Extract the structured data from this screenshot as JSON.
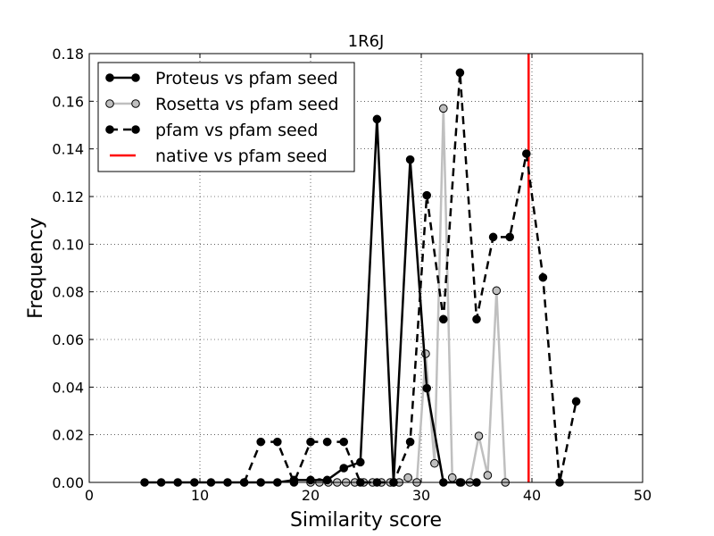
{
  "chart_data": {
    "type": "line",
    "title": "1R6J",
    "xlabel": "Similarity score",
    "ylabel": "Frequency",
    "xlim": [
      0,
      50
    ],
    "ylim": [
      0,
      0.18
    ],
    "xticks": [
      "0",
      "10",
      "20",
      "30",
      "40",
      "50"
    ],
    "yticks": [
      "0.00",
      "0.02",
      "0.04",
      "0.06",
      "0.08",
      "0.10",
      "0.12",
      "0.14",
      "0.16",
      "0.18"
    ],
    "grid": true,
    "legend_position": "top-left",
    "series": [
      {
        "name": "Proteus vs pfam seed",
        "color": "#000000",
        "style": "solid",
        "marker_fill": "#000000",
        "x": [
          5.0,
          6.5,
          8.0,
          9.5,
          11.0,
          12.5,
          14.0,
          15.5,
          17.0,
          18.5,
          20.0,
          21.5,
          23.0,
          24.5,
          26.0,
          27.5,
          29.0,
          30.5,
          32.0,
          33.5,
          35.0
        ],
        "y": [
          0.0,
          0.0,
          0.0,
          0.0,
          0.0,
          0.0,
          0.0,
          0.0,
          0.0,
          0.001,
          0.001,
          0.001,
          0.006,
          0.0085,
          0.1525,
          0.0,
          0.1355,
          0.0395,
          0.0,
          0.0,
          0.0
        ]
      },
      {
        "name": "Rosetta vs pfam seed",
        "color": "#bfbfbf",
        "style": "solid",
        "marker_fill": "#bfbfbf",
        "x": [
          20.0,
          20.8,
          21.6,
          22.4,
          23.2,
          24.0,
          24.8,
          25.6,
          26.4,
          27.2,
          28.0,
          28.8,
          29.6,
          30.4,
          31.2,
          32.0,
          32.8,
          33.6,
          34.4,
          35.2,
          36.0,
          36.8,
          37.6
        ],
        "y": [
          0.0,
          0.0,
          0.0,
          0.0,
          0.0,
          0.0,
          0.0,
          0.0,
          0.0,
          0.0,
          0.0,
          0.002,
          0.0,
          0.054,
          0.008,
          0.157,
          0.002,
          0.0,
          0.0,
          0.0195,
          0.003,
          0.0805,
          0.0
        ]
      },
      {
        "name": "pfam vs pfam seed",
        "color": "#000000",
        "style": "dashed",
        "marker_fill": "#000000",
        "x": [
          14.0,
          15.5,
          17.0,
          18.5,
          20.0,
          21.5,
          23.0,
          24.5,
          26.0,
          27.5,
          29.0,
          30.5,
          32.0,
          33.5,
          35.0,
          36.5,
          38.0,
          39.5,
          41.0,
          42.5,
          44.0
        ],
        "y": [
          0.0,
          0.017,
          0.017,
          0.0,
          0.017,
          0.017,
          0.017,
          0.0,
          0.0,
          0.0,
          0.017,
          0.1205,
          0.0685,
          0.172,
          0.0685,
          0.103,
          0.103,
          0.138,
          0.086,
          0.0,
          0.034
        ]
      }
    ],
    "reference_lines": [
      {
        "name": "native vs pfam seed",
        "color": "#ff0000",
        "x": 39.7
      }
    ]
  }
}
